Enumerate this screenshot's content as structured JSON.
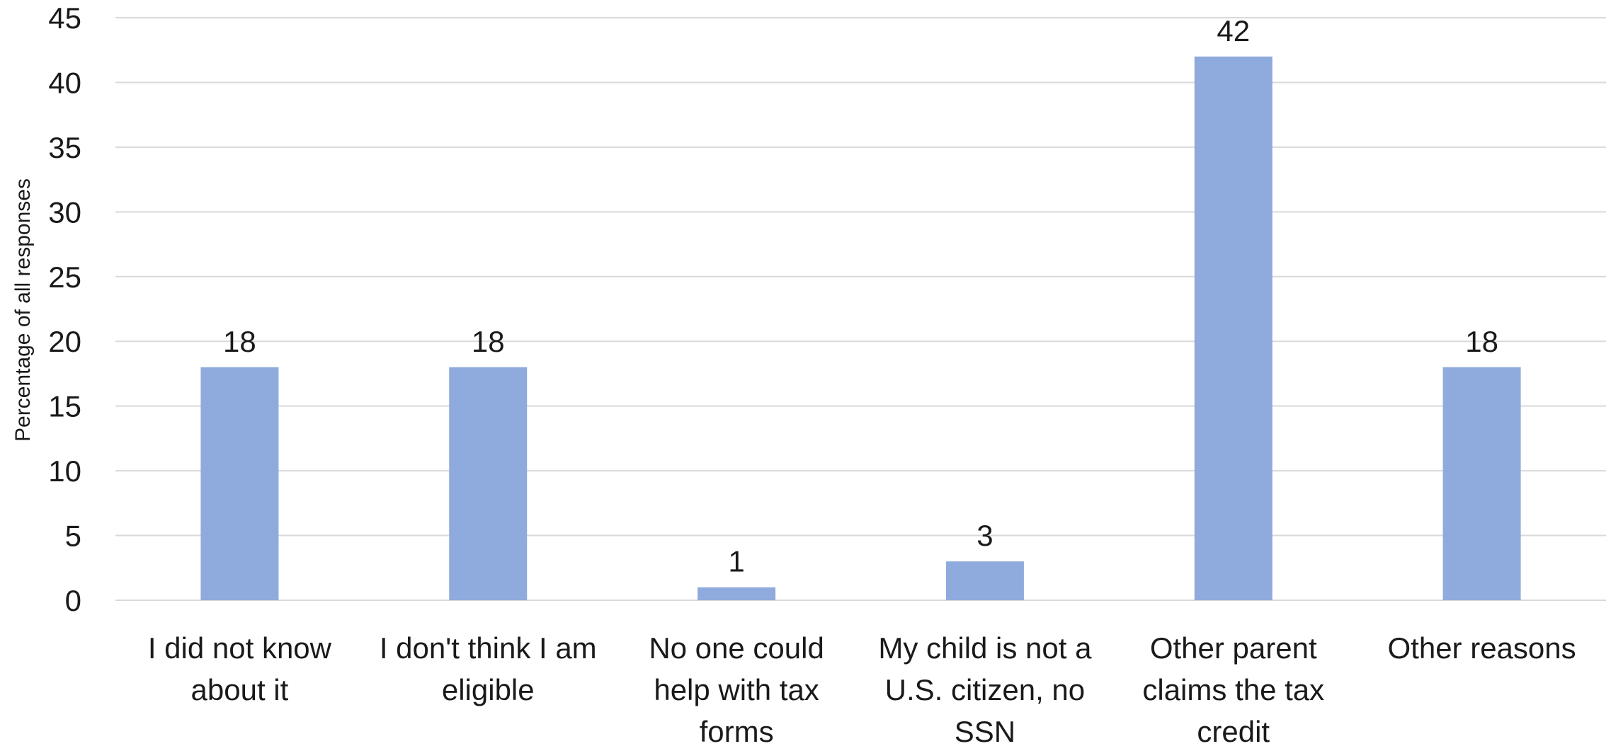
{
  "chart_data": {
    "type": "bar",
    "title": "",
    "xlabel": "",
    "ylabel": "Percentage of all responses",
    "ylim": [
      0,
      45
    ],
    "yticks": [
      0,
      5,
      10,
      15,
      20,
      25,
      30,
      35,
      40,
      45
    ],
    "grid": true,
    "legend": "none",
    "bar_color": "#8faadc",
    "categories": [
      [
        "I did not know",
        "about it"
      ],
      [
        "I don't think I am",
        "eligible"
      ],
      [
        "No one could",
        "help with tax",
        "forms"
      ],
      [
        "My child is not a",
        "U.S. citizen, no",
        "SSN"
      ],
      [
        "Other parent",
        "claims the tax",
        "credit"
      ],
      [
        "Other reasons"
      ]
    ],
    "values": [
      18,
      18,
      1,
      3,
      42,
      18
    ],
    "data_labels": [
      "18",
      "18",
      "1",
      "3",
      "42",
      "18"
    ]
  }
}
